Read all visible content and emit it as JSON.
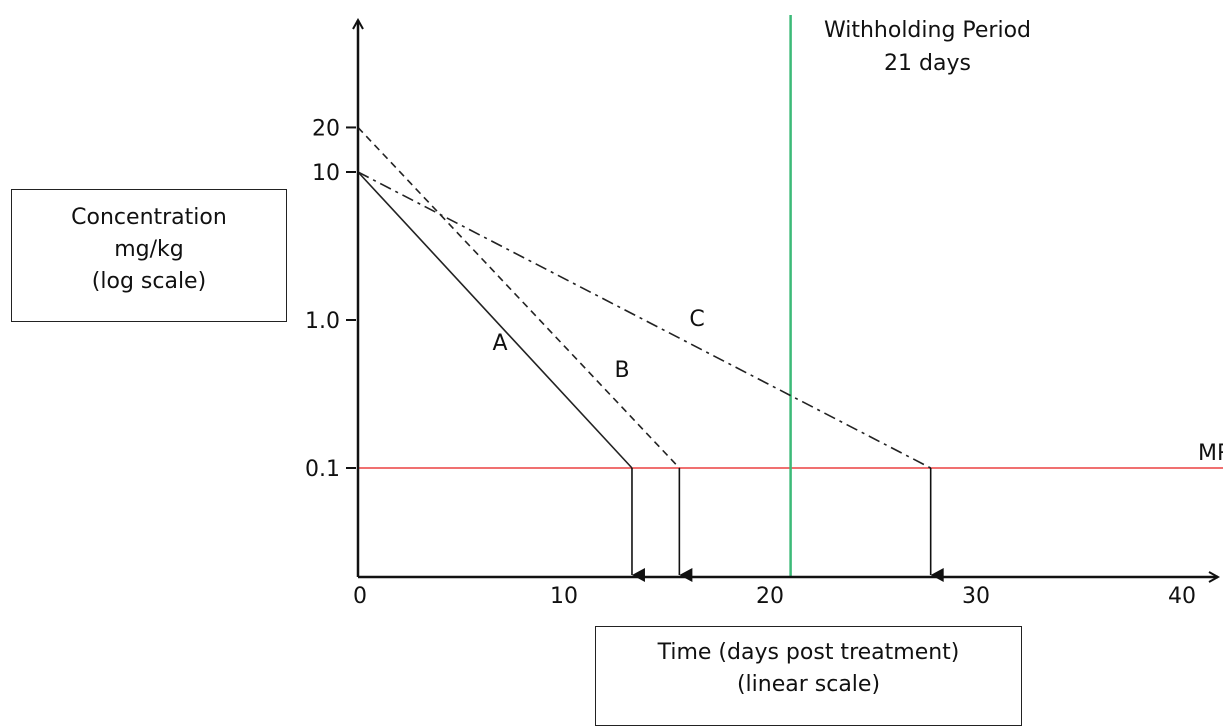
{
  "chart_data": {
    "type": "line",
    "x_axis": {
      "label_lines": [
        "Time (days post treatment)",
        "(linear scale)"
      ],
      "range": [
        0,
        40
      ],
      "ticks": [
        0,
        10,
        20,
        30,
        40
      ],
      "scale": "linear"
    },
    "y_axis": {
      "label_lines": [
        "Concentration",
        "mg/kg",
        "(log scale)"
      ],
      "ticks": [
        20,
        10,
        1.0,
        0.1
      ],
      "tick_labels": [
        "20",
        "10",
        "1.0",
        "0.1"
      ],
      "scale": "log"
    },
    "series": [
      {
        "name": "A",
        "style": "solid",
        "x": [
          0,
          13.3
        ],
        "y": [
          10,
          0.1
        ]
      },
      {
        "name": "B",
        "style": "dashed",
        "x": [
          0,
          15.6
        ],
        "y": [
          20,
          0.1
        ]
      },
      {
        "name": "C",
        "style": "dash-dot",
        "x": [
          0,
          27.8
        ],
        "y": [
          10,
          0.1
        ]
      }
    ],
    "reference_lines": {
      "mrl": {
        "label": "MRL",
        "y": 0.1,
        "color": "#f07070"
      },
      "withholding": {
        "label_lines": [
          "Withholding Period",
          "21 days"
        ],
        "x": 21,
        "color": "#3cba78"
      }
    },
    "depletion_arrows_x": [
      13.3,
      15.6,
      27.8
    ],
    "grid": false,
    "legend": "none"
  }
}
